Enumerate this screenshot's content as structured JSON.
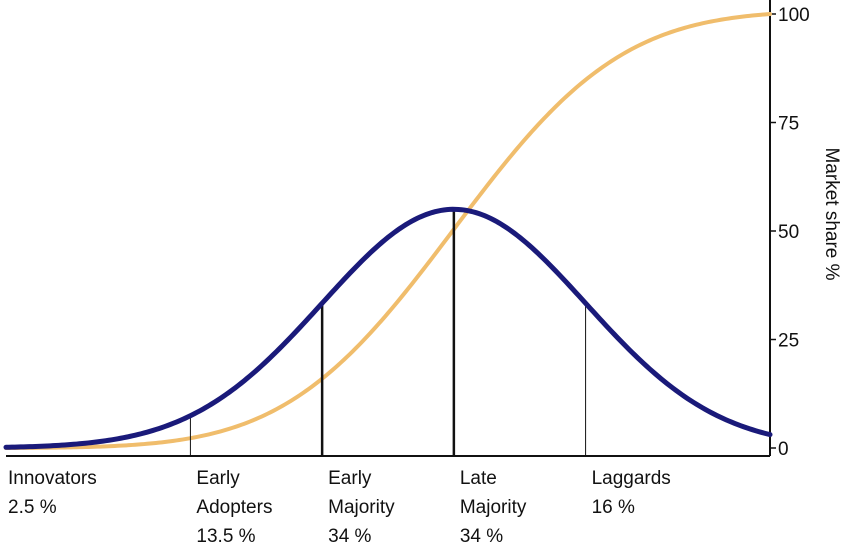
{
  "chart_data": {
    "type": "line",
    "ylabel": "Market share %",
    "y_ticks": [
      "100",
      "75",
      "50",
      "25",
      "0"
    ],
    "ylim": [
      0,
      100
    ],
    "y_axis_position": "right",
    "grid": false,
    "segments": [
      {
        "name_lines": [
          "Innovators"
        ],
        "share": "2.5 %"
      },
      {
        "name_lines": [
          "Early",
          "Adopters"
        ],
        "share": "13.5 %"
      },
      {
        "name_lines": [
          "Early",
          "Majority"
        ],
        "share": "34 %"
      },
      {
        "name_lines": [
          "Late",
          "Majority"
        ],
        "share": "34 %"
      },
      {
        "name_lines": [
          "Laggards"
        ],
        "share": "16 %"
      }
    ],
    "segment_boundaries_sd": [
      -2,
      -1,
      0,
      1
    ],
    "x_domain_sd": [
      -3.4,
      2.4
    ],
    "series": [
      {
        "kind": "adoption-bell-curve",
        "color": "#1a1a7a",
        "peak_market_share": 55
      },
      {
        "kind": "cumulative-s-curve",
        "color": "#f0bd6c",
        "range": [
          0,
          100
        ]
      }
    ]
  }
}
